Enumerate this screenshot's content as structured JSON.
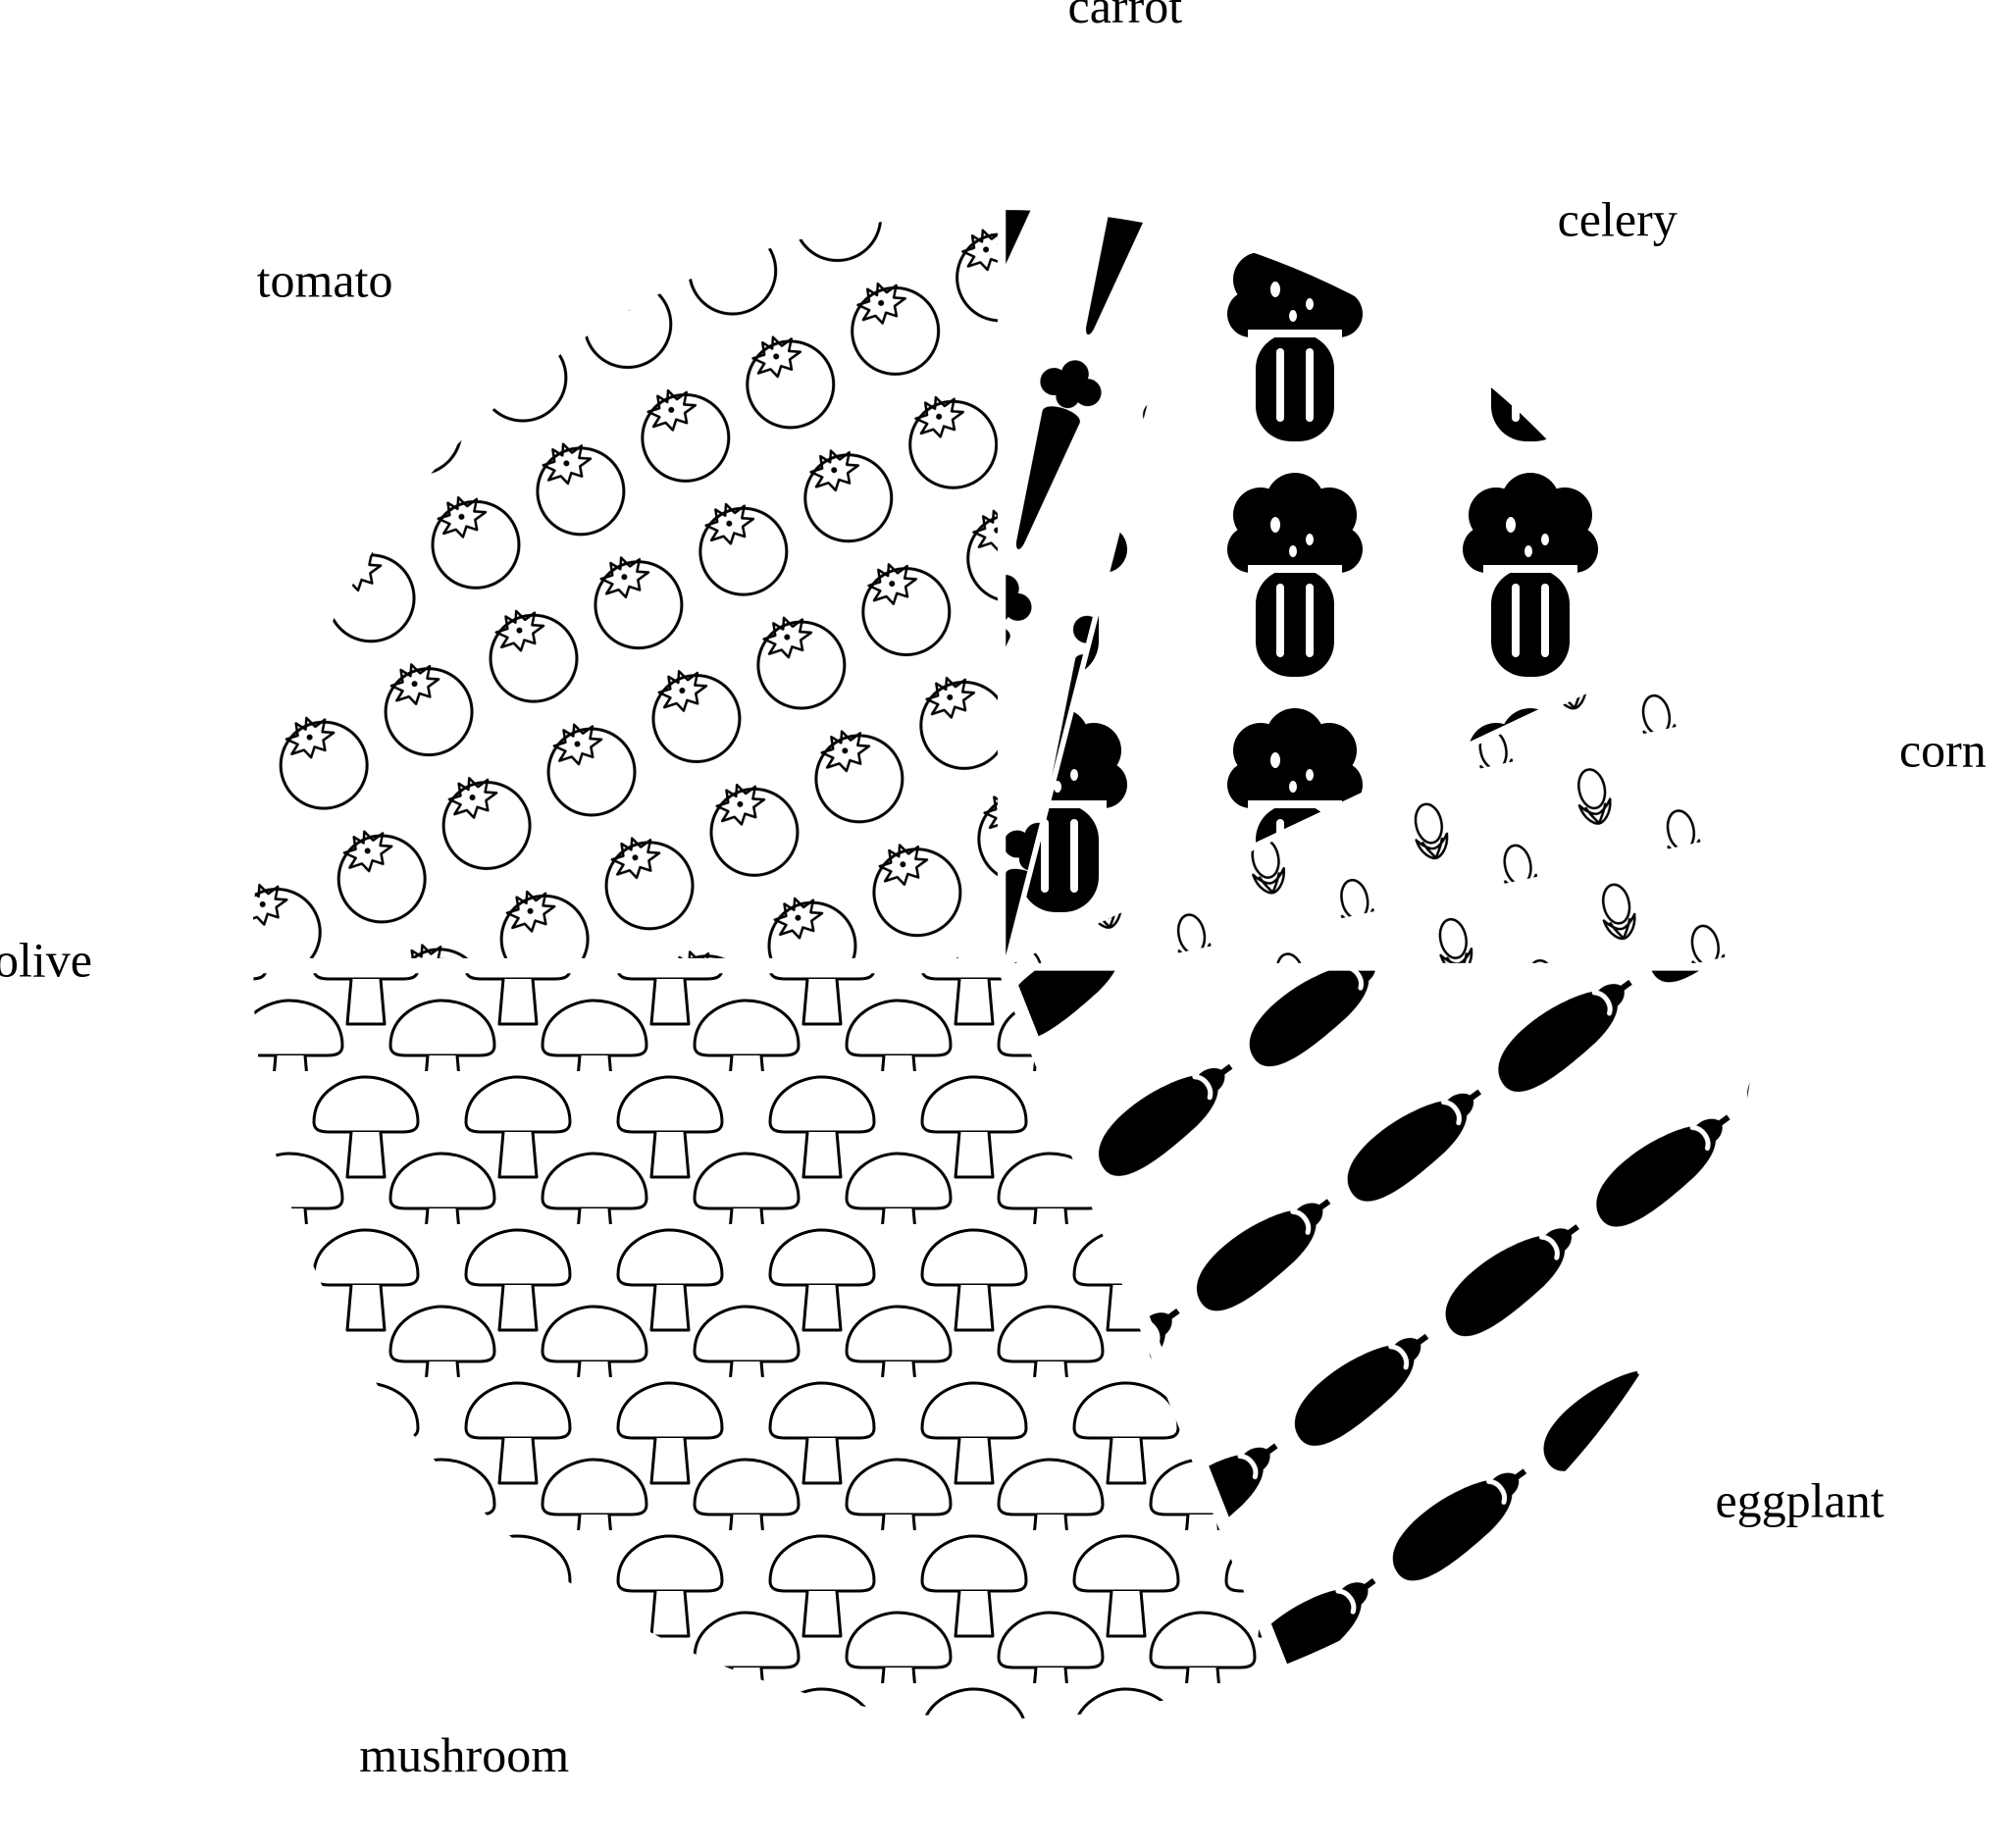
{
  "chart_data": {
    "type": "pie",
    "title": "",
    "exploded": true,
    "legend": "none",
    "slices": [
      {
        "label": "carrot",
        "value": 4,
        "pattern": "carrot-solid"
      },
      {
        "label": "celery",
        "value": 14,
        "pattern": "broccoli-solid"
      },
      {
        "label": "corn",
        "value": 7,
        "pattern": "corn-outline"
      },
      {
        "label": "eggplant",
        "value": 19,
        "pattern": "eggplant-solid"
      },
      {
        "label": "mushroom",
        "value": 31,
        "pattern": "mushroom-outline"
      },
      {
        "label": "olive",
        "value": 0,
        "pattern": "olive"
      },
      {
        "label": "tomato",
        "value": 25,
        "pattern": "tomato-outline"
      }
    ]
  }
}
